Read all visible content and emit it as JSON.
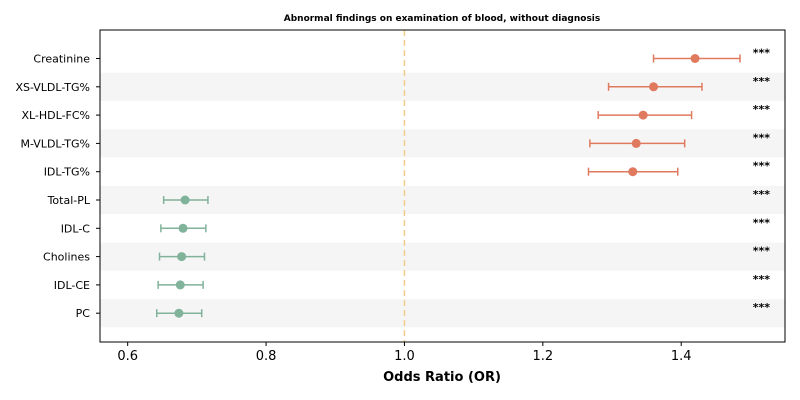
{
  "chart_data": {
    "type": "forest",
    "title": "Abnormal findings on examination of blood, without diagnosis",
    "xlabel": "Odds Ratio (OR)",
    "xlim": [
      0.56,
      1.55
    ],
    "xticks": [
      0.6,
      0.8,
      1.0,
      1.2,
      1.4
    ],
    "xtick_labels": [
      "0.6",
      "0.8",
      "1.0",
      "1.2",
      "1.4"
    ],
    "reference_line": 1.0,
    "colors": {
      "increased": "#e07a5f",
      "decreased": "#81b29a",
      "reference": "#f2cc8f",
      "band": "#f5f5f5"
    },
    "rows": [
      {
        "label": "Creatinine",
        "or": 1.42,
        "lo": 1.36,
        "hi": 1.485,
        "sig": "***",
        "direction": "increased"
      },
      {
        "label": "XS-VLDL-TG%",
        "or": 1.36,
        "lo": 1.295,
        "hi": 1.43,
        "sig": "***",
        "direction": "increased"
      },
      {
        "label": "XL-HDL-FC%",
        "or": 1.345,
        "lo": 1.28,
        "hi": 1.415,
        "sig": "***",
        "direction": "increased"
      },
      {
        "label": "M-VLDL-TG%",
        "or": 1.335,
        "lo": 1.268,
        "hi": 1.405,
        "sig": "***",
        "direction": "increased"
      },
      {
        "label": "IDL-TG%",
        "or": 1.33,
        "lo": 1.266,
        "hi": 1.395,
        "sig": "***",
        "direction": "increased"
      },
      {
        "label": "Total-PL",
        "or": 0.683,
        "lo": 0.652,
        "hi": 0.716,
        "sig": "***",
        "direction": "decreased"
      },
      {
        "label": "IDL-C",
        "or": 0.68,
        "lo": 0.648,
        "hi": 0.713,
        "sig": "***",
        "direction": "decreased"
      },
      {
        "label": "Cholines",
        "or": 0.678,
        "lo": 0.646,
        "hi": 0.711,
        "sig": "***",
        "direction": "decreased"
      },
      {
        "label": "IDL-CE",
        "or": 0.676,
        "lo": 0.644,
        "hi": 0.709,
        "sig": "***",
        "direction": "decreased"
      },
      {
        "label": "PC",
        "or": 0.674,
        "lo": 0.642,
        "hi": 0.707,
        "sig": "***",
        "direction": "decreased"
      }
    ]
  }
}
